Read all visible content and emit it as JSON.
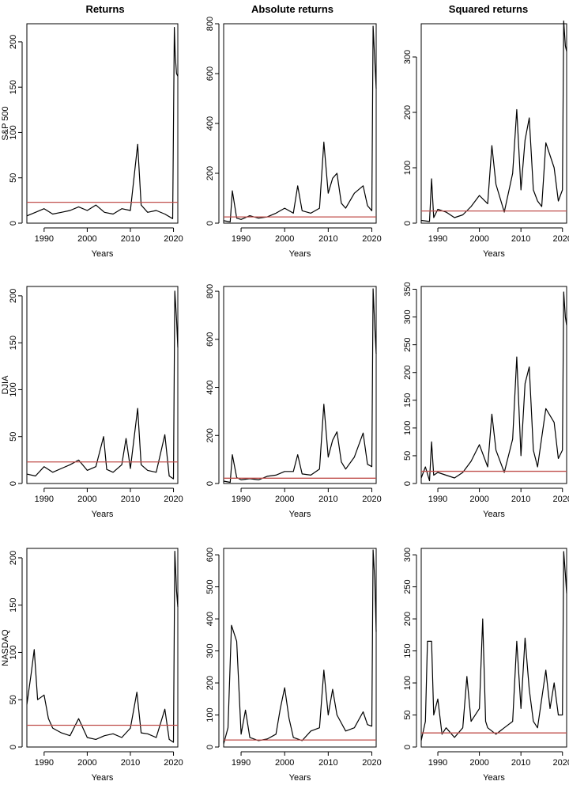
{
  "column_titles": [
    "Returns",
    "Absolute returns",
    "Squared returns"
  ],
  "row_labels": [
    "S&P 500",
    "DJIA",
    "NASDAQ"
  ],
  "colors": {
    "series": "#000000",
    "threshold": "#c0504d",
    "frame": "#000000"
  },
  "chart_data": [
    {
      "id": "sp500-returns",
      "type": "line",
      "title": "Returns",
      "ylabel": "S&P 500",
      "xlabel": "Years",
      "xlim": [
        1986,
        2021
      ],
      "xticks": [
        1990,
        2000,
        2010,
        2020
      ],
      "ylim": [
        0,
        220
      ],
      "yticks": [
        0,
        50,
        100,
        150,
        200
      ],
      "threshold": 23,
      "x": [
        1986,
        1988,
        1990,
        1992,
        1994,
        1996,
        1998,
        2000,
        2002,
        2004,
        2006,
        2008,
        2010,
        2011.7,
        2012.5,
        2014,
        2016,
        2018,
        2019.8,
        2020.2,
        2020.4,
        2020.7,
        2021
      ],
      "y": [
        8,
        12,
        16,
        10,
        12,
        14,
        18,
        14,
        20,
        12,
        10,
        16,
        14,
        87,
        20,
        12,
        14,
        10,
        5,
        216,
        185,
        165,
        162
      ]
    },
    {
      "id": "sp500-abs",
      "type": "line",
      "title": "Absolute returns",
      "xlabel": "Years",
      "xlim": [
        1986,
        2021
      ],
      "xticks": [
        1990,
        2000,
        2010,
        2020
      ],
      "ylim": [
        0,
        800
      ],
      "yticks": [
        0,
        200,
        400,
        600,
        800
      ],
      "threshold": 25,
      "x": [
        1986,
        1987.5,
        1988,
        1989,
        1990,
        1992,
        1994,
        1996,
        1998,
        2000,
        2002,
        2003,
        2004,
        2006,
        2008,
        2009,
        2010,
        2011,
        2012,
        2013,
        2014,
        2016,
        2018,
        2019,
        2020,
        2020.3,
        2020.7,
        2021
      ],
      "y": [
        10,
        5,
        130,
        20,
        15,
        30,
        20,
        25,
        40,
        60,
        40,
        150,
        50,
        40,
        60,
        325,
        120,
        180,
        200,
        80,
        60,
        120,
        150,
        70,
        50,
        790,
        650,
        540
      ]
    },
    {
      "id": "sp500-sq",
      "type": "line",
      "title": "Squared returns",
      "xlabel": "Years",
      "xlim": [
        1986,
        2021
      ],
      "xticks": [
        1990,
        2000,
        2010,
        2020
      ],
      "ylim": [
        0,
        360
      ],
      "yticks": [
        0,
        100,
        200,
        300
      ],
      "threshold": 22,
      "x": [
        1986,
        1988,
        1988.5,
        1989,
        1990,
        1992,
        1994,
        1996,
        1998,
        2000,
        2002,
        2003,
        2004,
        2006,
        2008,
        2009,
        2010,
        2011,
        2012,
        2013,
        2014,
        2015,
        2016,
        2018,
        2019,
        2020,
        2020.3,
        2020.7,
        2021
      ],
      "y": [
        5,
        3,
        80,
        10,
        25,
        20,
        10,
        15,
        30,
        50,
        35,
        140,
        70,
        20,
        90,
        205,
        60,
        150,
        190,
        60,
        40,
        30,
        145,
        100,
        40,
        60,
        365,
        320,
        310
      ]
    },
    {
      "id": "djia-returns",
      "type": "line",
      "ylabel": "DJIA",
      "xlabel": "Years",
      "xlim": [
        1986,
        2021
      ],
      "xticks": [
        1990,
        2000,
        2010,
        2020
      ],
      "ylim": [
        0,
        210
      ],
      "yticks": [
        0,
        50,
        100,
        150,
        200
      ],
      "threshold": 23,
      "x": [
        1986,
        1988,
        1990,
        1992,
        1994,
        1996,
        1998,
        2000,
        2002,
        2003.8,
        2004.5,
        2006,
        2008,
        2009,
        2010,
        2011.7,
        2012.5,
        2014,
        2016,
        2018,
        2019,
        2020,
        2020.3,
        2020.7,
        2021
      ],
      "y": [
        10,
        8,
        18,
        12,
        16,
        20,
        25,
        14,
        18,
        50,
        15,
        12,
        20,
        48,
        16,
        80,
        20,
        14,
        12,
        52,
        8,
        5,
        205,
        175,
        145
      ]
    },
    {
      "id": "djia-abs",
      "type": "line",
      "xlabel": "Years",
      "xlim": [
        1986,
        2021
      ],
      "xticks": [
        1990,
        2000,
        2010,
        2020
      ],
      "ylim": [
        0,
        820
      ],
      "yticks": [
        0,
        200,
        400,
        600,
        800
      ],
      "threshold": 22,
      "x": [
        1986,
        1987.5,
        1988,
        1989,
        1990,
        1992,
        1994,
        1996,
        1998,
        2000,
        2002,
        2003,
        2004,
        2006,
        2008,
        2009,
        2010,
        2011,
        2012,
        2013,
        2014,
        2016,
        2018,
        2019,
        2020,
        2020.3,
        2020.7,
        2021
      ],
      "y": [
        10,
        5,
        120,
        25,
        15,
        20,
        15,
        30,
        35,
        50,
        50,
        120,
        40,
        35,
        60,
        330,
        110,
        180,
        215,
        90,
        60,
        110,
        210,
        80,
        70,
        810,
        650,
        540
      ]
    },
    {
      "id": "djia-sq",
      "type": "line",
      "xlabel": "Years",
      "xlim": [
        1986,
        2021
      ],
      "xticks": [
        1990,
        2000,
        2010,
        2020
      ],
      "ylim": [
        0,
        355
      ],
      "yticks": [
        0,
        50,
        100,
        150,
        200,
        250,
        300,
        350
      ],
      "threshold": 22,
      "x": [
        1986,
        1987,
        1988,
        1988.5,
        1989,
        1990,
        1992,
        1994,
        1996,
        1998,
        2000,
        2002,
        2003,
        2004,
        2006,
        2008,
        2009,
        2010,
        2011,
        2012,
        2013,
        2014,
        2016,
        2018,
        2019,
        2020,
        2020.3,
        2020.7,
        2021
      ],
      "y": [
        10,
        30,
        5,
        75,
        15,
        20,
        15,
        10,
        20,
        40,
        70,
        30,
        125,
        60,
        20,
        80,
        228,
        50,
        180,
        210,
        60,
        30,
        135,
        110,
        45,
        60,
        345,
        300,
        285
      ]
    },
    {
      "id": "nasdaq-returns",
      "type": "line",
      "ylabel": "NASDAQ",
      "xlabel": "Years",
      "xlim": [
        1986,
        2021
      ],
      "xticks": [
        1990,
        2000,
        2010,
        2020
      ],
      "ylim": [
        0,
        210
      ],
      "yticks": [
        0,
        50,
        100,
        150,
        200
      ],
      "threshold": 23,
      "x": [
        1986,
        1987,
        1987.7,
        1988.5,
        1990,
        1991,
        1992,
        1994,
        1996,
        1998,
        2000,
        2002,
        2004,
        2006,
        2008,
        2010,
        2011.5,
        2012.5,
        2014,
        2016,
        2018,
        2019,
        2020,
        2020.3,
        2020.7,
        2021
      ],
      "y": [
        45,
        78,
        103,
        50,
        55,
        30,
        20,
        15,
        12,
        30,
        10,
        8,
        12,
        14,
        10,
        20,
        58,
        15,
        14,
        10,
        40,
        8,
        5,
        207,
        165,
        148
      ]
    },
    {
      "id": "nasdaq-abs",
      "type": "line",
      "xlabel": "Years",
      "xlim": [
        1986,
        2021
      ],
      "xticks": [
        1990,
        2000,
        2010,
        2020
      ],
      "ylim": [
        0,
        620
      ],
      "yticks": [
        0,
        100,
        200,
        300,
        400,
        500,
        600
      ],
      "threshold": 22,
      "x": [
        1986,
        1987,
        1987.8,
        1989,
        1990,
        1991,
        1992,
        1994,
        1996,
        1998,
        1999,
        2000,
        2001,
        2002,
        2004,
        2006,
        2008,
        2009,
        2010,
        2011,
        2012,
        2014,
        2016,
        2018,
        2019,
        2020,
        2020.3,
        2020.7,
        2021
      ],
      "y": [
        10,
        60,
        380,
        330,
        40,
        115,
        30,
        20,
        25,
        40,
        120,
        185,
        90,
        30,
        20,
        50,
        60,
        240,
        100,
        180,
        100,
        50,
        60,
        110,
        70,
        65,
        615,
        520,
        360
      ]
    },
    {
      "id": "nasdaq-sq",
      "type": "line",
      "xlabel": "Years",
      "xlim": [
        1986,
        2021
      ],
      "xticks": [
        1990,
        2000,
        2010,
        2020
      ],
      "ylim": [
        0,
        310
      ],
      "yticks": [
        0,
        50,
        100,
        150,
        200,
        250,
        300
      ],
      "threshold": 22,
      "x": [
        1986,
        1987,
        1987.5,
        1988.5,
        1989,
        1990,
        1991,
        1992,
        1994,
        1996,
        1997,
        1998,
        2000,
        2000.8,
        2001.5,
        2002,
        2004,
        2006,
        2008,
        2009,
        2010,
        2011,
        2012,
        2013,
        2014,
        2016,
        2017,
        2018,
        2019,
        2020,
        2020.3,
        2020.7,
        2021
      ],
      "y": [
        10,
        40,
        165,
        165,
        50,
        75,
        20,
        30,
        15,
        30,
        110,
        40,
        60,
        200,
        40,
        30,
        20,
        30,
        40,
        165,
        60,
        170,
        90,
        40,
        30,
        120,
        60,
        100,
        50,
        50,
        305,
        270,
        240
      ]
    }
  ]
}
